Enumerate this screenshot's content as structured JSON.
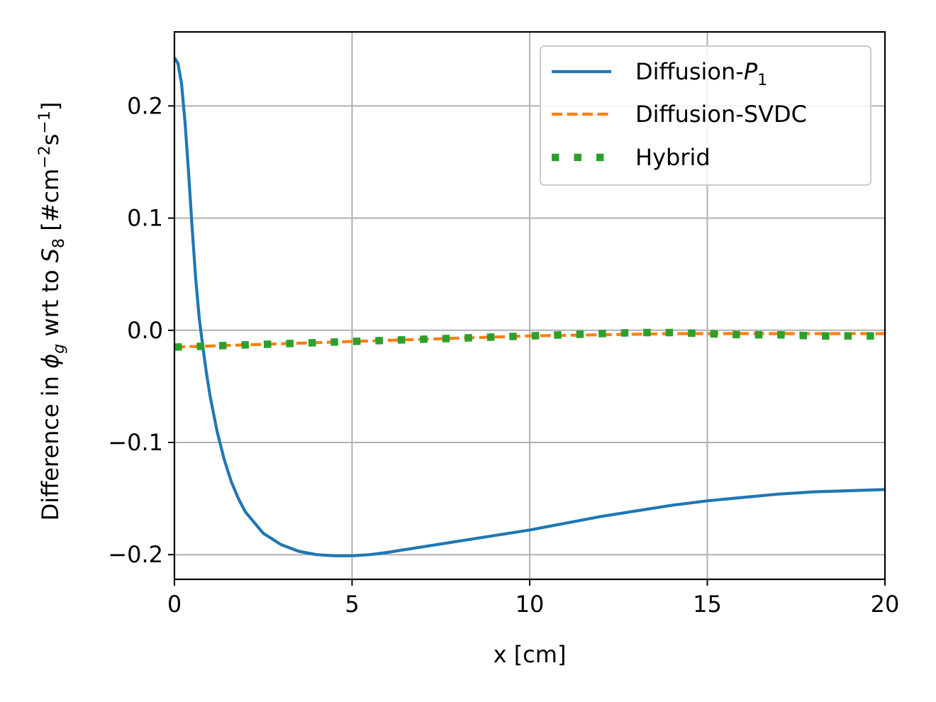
{
  "chart_data": {
    "type": "line",
    "xlabel": "x [cm]",
    "ylabel": {
      "prefix": "Difference in ",
      "phi": "ϕ",
      "phi_sub": "g",
      "mid": " wrt to ",
      "S": "S",
      "S_sub": "8",
      "unit_open": " [#cm",
      "exp1": "−2",
      "s": "s",
      "exp2": "−1",
      "unit_close": "]"
    },
    "xlim": [
      0,
      20
    ],
    "ylim": [
      -0.222,
      0.266
    ],
    "xticks": [
      0,
      5,
      10,
      15,
      20
    ],
    "xtick_labels": [
      "0",
      "5",
      "10",
      "15",
      "20"
    ],
    "yticks": [
      -0.2,
      -0.1,
      0.0,
      0.1,
      0.2
    ],
    "ytick_labels": [
      "−0.2",
      "−0.1",
      "0.0",
      "0.1",
      "0.2"
    ],
    "grid": true,
    "legend_position": "upper-right",
    "series": [
      {
        "name": "Diffusion-P",
        "name_sub": "1",
        "style": "solid",
        "color": "#1f77b4",
        "x": [
          0,
          0.1,
          0.2,
          0.3,
          0.4,
          0.5,
          0.6,
          0.7,
          0.8,
          0.9,
          1.0,
          1.2,
          1.4,
          1.6,
          1.8,
          2.0,
          2.5,
          3.0,
          3.5,
          4.0,
          4.5,
          5.0,
          5.5,
          6.0,
          7.0,
          8.0,
          9.0,
          10.0,
          11.0,
          12.0,
          13.0,
          14.0,
          15.0,
          16.0,
          17.0,
          18.0,
          19.0,
          20.0
        ],
        "y": [
          0.243,
          0.238,
          0.22,
          0.185,
          0.14,
          0.09,
          0.045,
          0.01,
          -0.015,
          -0.038,
          -0.058,
          -0.09,
          -0.115,
          -0.135,
          -0.15,
          -0.162,
          -0.181,
          -0.191,
          -0.197,
          -0.2,
          -0.201,
          -0.201,
          -0.2,
          -0.198,
          -0.193,
          -0.188,
          -0.183,
          -0.178,
          -0.172,
          -0.166,
          -0.161,
          -0.156,
          -0.152,
          -0.149,
          -0.146,
          -0.144,
          -0.143,
          -0.142
        ]
      },
      {
        "name": "Diffusion-SVDC",
        "style": "dashed",
        "color": "#ff7f0e",
        "x": [
          0,
          2,
          4,
          6,
          8,
          10,
          12,
          14,
          16,
          18,
          20
        ],
        "y": [
          -0.015,
          -0.013,
          -0.011,
          -0.009,
          -0.007,
          -0.005,
          -0.004,
          -0.003,
          -0.003,
          -0.003,
          -0.003
        ]
      },
      {
        "name": "Hybrid",
        "style": "dotted",
        "color": "#2ca02c",
        "x": [
          0,
          2,
          4,
          6,
          8,
          10,
          12,
          13,
          14,
          15,
          16,
          17,
          18,
          19,
          20
        ],
        "y": [
          -0.015,
          -0.013,
          -0.011,
          -0.009,
          -0.007,
          -0.005,
          -0.003,
          -0.002,
          -0.002,
          -0.003,
          -0.004,
          -0.004,
          -0.005,
          -0.005,
          -0.005
        ]
      }
    ]
  }
}
